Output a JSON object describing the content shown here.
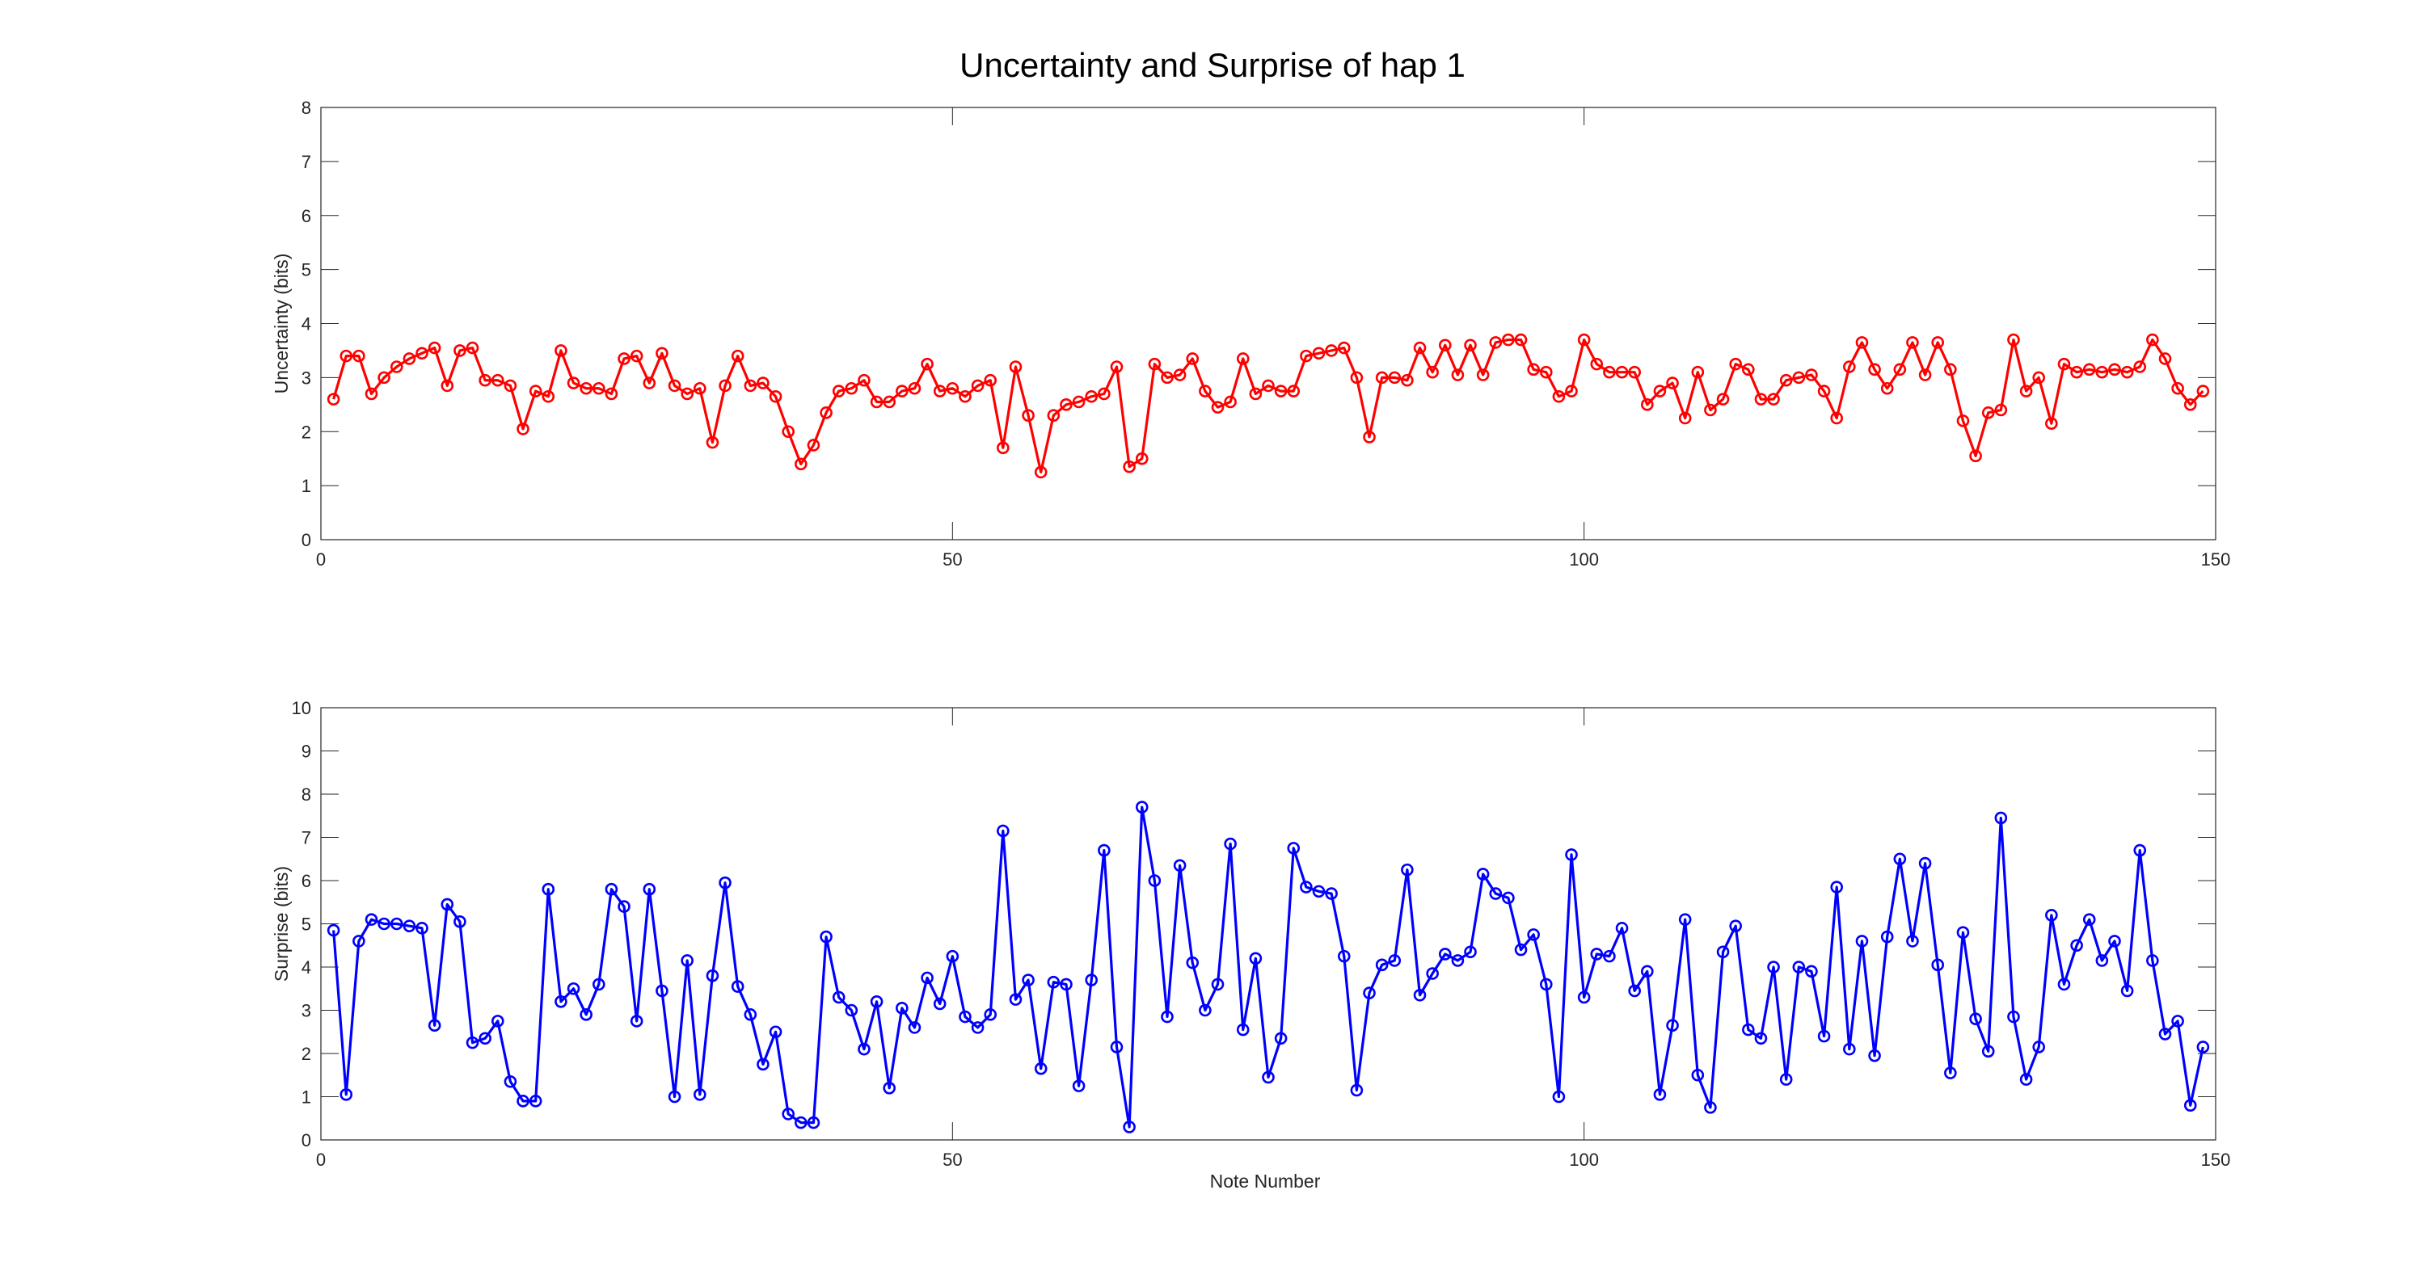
{
  "chart_data": {
    "type": "line",
    "title": "Uncertainty and Surprise of hap 1",
    "xlabel": "Note Number",
    "x": [
      1,
      2,
      3,
      4,
      5,
      6,
      7,
      8,
      9,
      10,
      11,
      12,
      13,
      14,
      15,
      16,
      17,
      18,
      19,
      20,
      21,
      22,
      23,
      24,
      25,
      26,
      27,
      28,
      29,
      30,
      31,
      32,
      33,
      34,
      35,
      36,
      37,
      38,
      39,
      40,
      41,
      42,
      43,
      44,
      45,
      46,
      47,
      48,
      49,
      50,
      51,
      52,
      53,
      54,
      55,
      56,
      57,
      58,
      59,
      60,
      61,
      62,
      63,
      64,
      65,
      66,
      67,
      68,
      69,
      70,
      71,
      72,
      73,
      74,
      75,
      76,
      77,
      78,
      79,
      80,
      81,
      82,
      83,
      84,
      85,
      86,
      87,
      88,
      89,
      90,
      91,
      92,
      93,
      94,
      95,
      96,
      97,
      98,
      99,
      100,
      101,
      102,
      103,
      104,
      105,
      106,
      107,
      108,
      109,
      110,
      111,
      112,
      113,
      114,
      115,
      116,
      117,
      118,
      119,
      120,
      121,
      122,
      123,
      124,
      125,
      126,
      127,
      128,
      129,
      130,
      131,
      132,
      133,
      134,
      135,
      136,
      137,
      138,
      139,
      140,
      141,
      142,
      143,
      144,
      145,
      146,
      147,
      148,
      149
    ],
    "xlim": [
      0,
      150
    ],
    "xticks": [
      0,
      50,
      100,
      150
    ],
    "panels": [
      {
        "ylabel": "Uncertainty (bits)",
        "ylim": [
          0,
          8
        ],
        "yticks": [
          0,
          1,
          2,
          3,
          4,
          5,
          6,
          7,
          8
        ],
        "color": "#ff0000",
        "values": [
          2.6,
          3.4,
          3.4,
          2.7,
          3.0,
          3.2,
          3.35,
          3.45,
          3.55,
          2.85,
          3.5,
          3.55,
          2.95,
          2.95,
          2.85,
          2.05,
          2.75,
          2.65,
          3.5,
          2.9,
          2.8,
          2.8,
          2.7,
          3.35,
          3.4,
          2.9,
          3.45,
          2.85,
          2.7,
          2.8,
          1.8,
          2.85,
          3.4,
          2.85,
          2.9,
          2.65,
          2.0,
          1.4,
          1.75,
          2.35,
          2.75,
          2.8,
          2.95,
          2.55,
          2.55,
          2.75,
          2.8,
          3.25,
          2.75,
          2.8,
          2.65,
          2.85,
          2.95,
          1.7,
          3.2,
          2.3,
          1.25,
          2.3,
          2.5,
          2.55,
          2.65,
          2.7,
          3.2,
          1.35,
          1.5,
          3.25,
          3.0,
          3.05,
          3.35,
          2.75,
          2.45,
          2.55,
          3.35,
          2.7,
          2.85,
          2.75,
          2.75,
          3.4,
          3.45,
          3.5,
          3.55,
          3.0,
          1.9,
          3.0,
          3.0,
          2.95,
          3.55,
          3.1,
          3.6,
          3.05,
          3.6,
          3.05,
          3.65,
          3.7,
          3.7,
          3.15,
          3.1,
          2.65,
          2.75,
          3.7,
          3.25,
          3.1,
          3.1,
          3.1,
          2.5,
          2.75,
          2.9,
          2.25,
          3.1,
          2.4,
          2.6,
          3.25,
          3.15,
          2.6,
          2.6,
          2.95,
          3.0,
          3.05,
          2.75,
          2.25,
          3.2,
          3.65,
          3.15,
          2.8,
          3.15,
          3.65,
          3.05,
          3.65,
          3.15,
          2.2,
          1.55,
          2.35,
          2.4,
          3.7,
          2.75,
          3.0,
          2.15,
          3.25,
          3.1,
          3.15,
          3.1,
          3.15,
          3.1,
          3.2,
          3.7,
          3.35,
          2.8,
          2.5,
          2.75
        ]
      },
      {
        "ylabel": "Surprise (bits)",
        "ylim": [
          0,
          10
        ],
        "yticks": [
          0,
          1,
          2,
          3,
          4,
          5,
          6,
          7,
          8,
          9,
          10
        ],
        "color": "#0000ff",
        "values": [
          4.85,
          1.05,
          4.6,
          5.1,
          5.0,
          5.0,
          4.95,
          4.9,
          2.65,
          5.45,
          5.05,
          2.25,
          2.35,
          2.75,
          1.35,
          0.9,
          0.9,
          5.8,
          3.2,
          3.5,
          2.9,
          3.6,
          5.8,
          5.4,
          2.75,
          5.8,
          3.45,
          1.0,
          4.15,
          1.05,
          3.8,
          5.95,
          3.55,
          2.9,
          1.75,
          2.5,
          0.6,
          0.4,
          0.4,
          4.7,
          3.3,
          3.0,
          2.1,
          3.2,
          1.2,
          3.05,
          2.6,
          3.75,
          3.15,
          4.25,
          2.85,
          2.6,
          2.9,
          7.15,
          3.25,
          3.7,
          1.65,
          3.65,
          3.6,
          1.25,
          3.7,
          6.7,
          2.15,
          0.3,
          7.7,
          6.0,
          2.85,
          6.35,
          4.1,
          3.0,
          3.6,
          6.85,
          2.55,
          4.2,
          1.45,
          2.35,
          6.75,
          5.85,
          5.75,
          5.7,
          4.25,
          1.15,
          3.4,
          4.05,
          4.15,
          6.25,
          3.35,
          3.85,
          4.3,
          4.15,
          4.35,
          6.15,
          5.7,
          5.6,
          4.4,
          4.75,
          3.6,
          1.0,
          6.6,
          3.3,
          4.3,
          4.25,
          4.9,
          3.45,
          3.9,
          1.05,
          2.65,
          5.1,
          1.5,
          0.75,
          4.35,
          4.95,
          2.55,
          2.35,
          4.0,
          1.4,
          4.0,
          3.9,
          2.4,
          5.85,
          2.1,
          4.6,
          1.95,
          4.7,
          6.5,
          4.6,
          6.4,
          4.05,
          1.55,
          4.8,
          2.8,
          2.05,
          7.45,
          2.85,
          1.4,
          2.15,
          5.2,
          3.6,
          4.5,
          5.1,
          4.15,
          4.6,
          3.45,
          6.7,
          4.15,
          2.45,
          2.75,
          0.8,
          2.15
        ]
      }
    ]
  }
}
